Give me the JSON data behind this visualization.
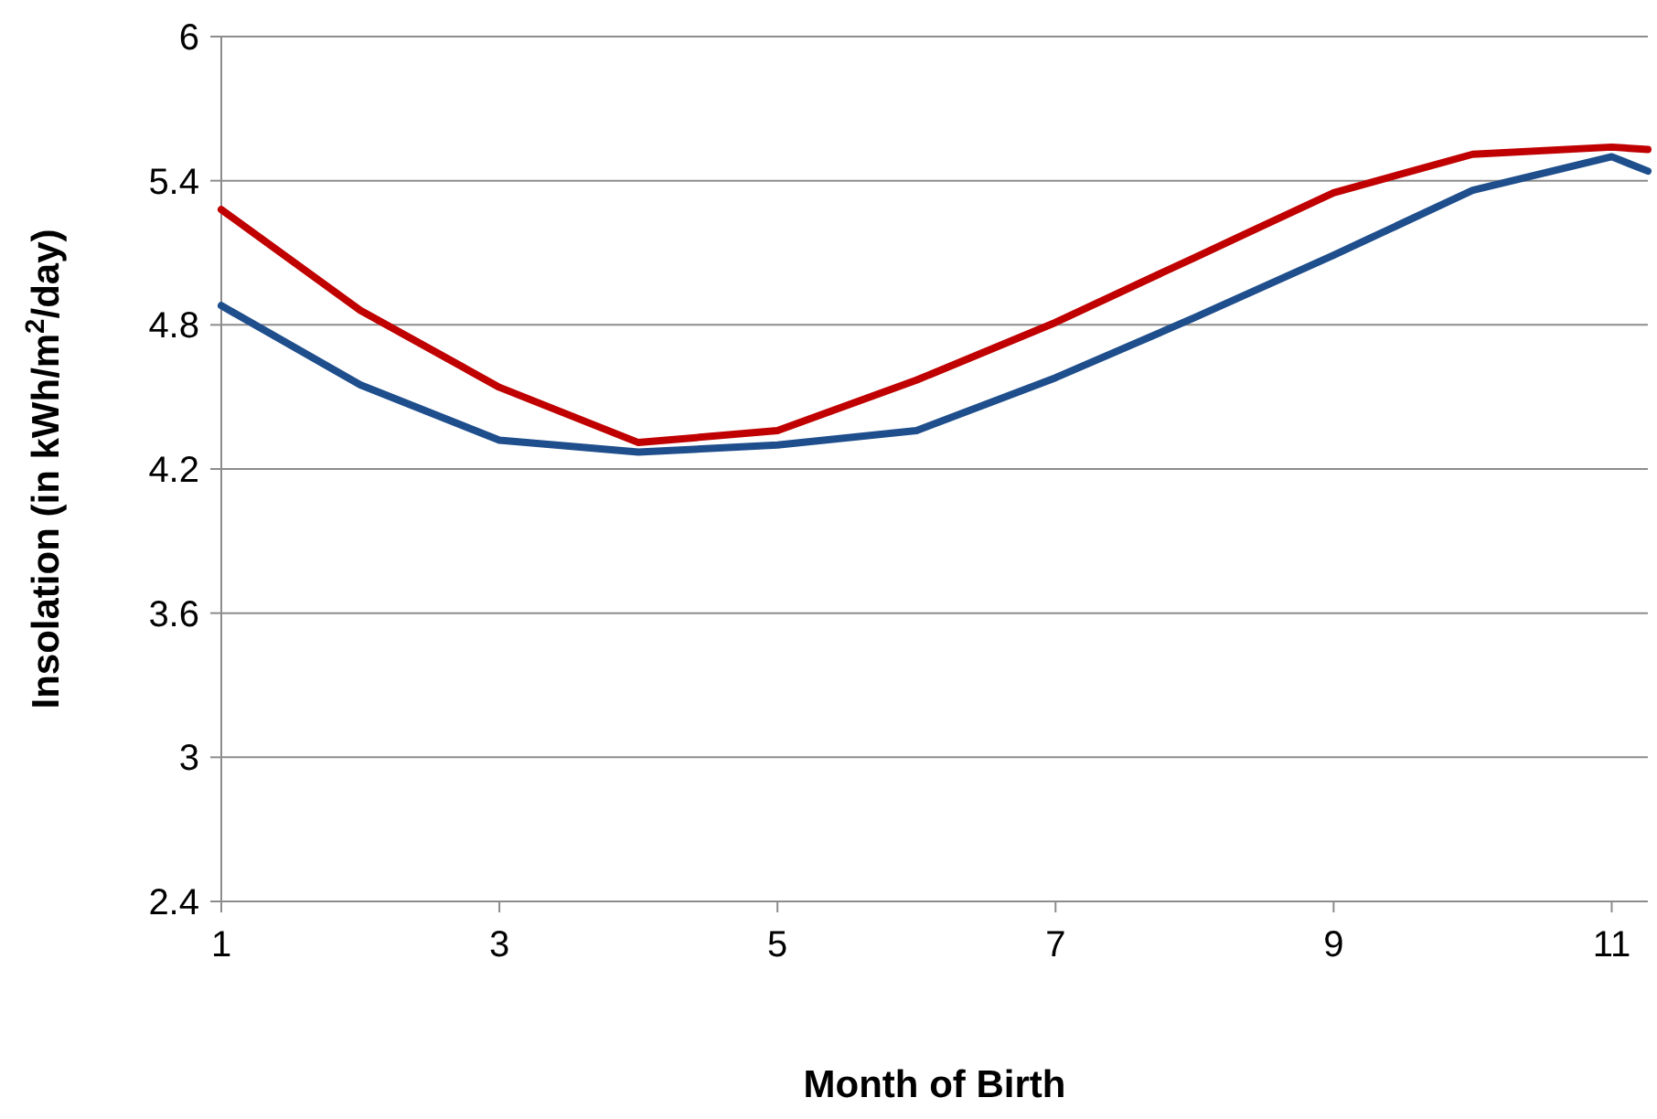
{
  "chart_data": {
    "type": "line",
    "xlabel": "Month of Birth",
    "ylabel": "Insolation (in kWh/m$^{2}$/day)",
    "xlim": [
      1,
      11.26
    ],
    "xticks": [
      1,
      3,
      5,
      7,
      9,
      11
    ],
    "ylim": [
      2.4,
      6
    ],
    "yticks": [
      2.4,
      3,
      3.6,
      4.2,
      4.8,
      5.4,
      6
    ],
    "grid": "y",
    "marker": "none",
    "line_style": "solid",
    "series": [
      {
        "color": "#c00000",
        "x": [
          1,
          2,
          3,
          4,
          5,
          6,
          7,
          8,
          9,
          10,
          11,
          11.26
        ],
        "values": [
          5.28,
          4.86,
          4.54,
          4.31,
          4.36,
          4.57,
          4.81,
          5.08,
          5.35,
          5.51,
          5.54,
          5.53
        ]
      },
      {
        "color": "#1f4e8c",
        "x": [
          1,
          2,
          3,
          4,
          5,
          6,
          7,
          8,
          9,
          10,
          11,
          11.26
        ],
        "values": [
          4.88,
          4.55,
          4.32,
          4.27,
          4.3,
          4.36,
          4.58,
          4.83,
          5.09,
          5.36,
          5.5,
          5.44
        ]
      }
    ]
  }
}
